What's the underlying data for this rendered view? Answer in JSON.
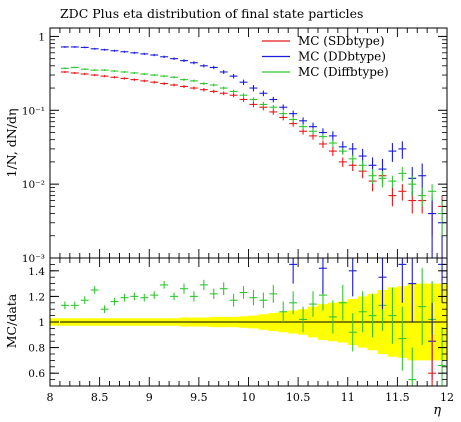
{
  "chart_data": [
    {
      "type": "scatter",
      "title": "ZDC Plus eta distribution of final state particles",
      "ylabel": "1/N, dN/dη",
      "yscale": "log",
      "ylim": [
        0.001,
        1.3
      ],
      "xlim": [
        8,
        12
      ],
      "legend_position": "top-right",
      "y_ticks": [
        {
          "value": 1,
          "label": "1"
        },
        {
          "value": 0.1,
          "label": "10⁻¹"
        },
        {
          "value": 0.01,
          "label": "10⁻²"
        },
        {
          "value": 0.001,
          "label": "10⁻³"
        }
      ],
      "bin_width": 0.1,
      "x": [
        8.15,
        8.25,
        8.35,
        8.45,
        8.55,
        8.65,
        8.75,
        8.85,
        8.95,
        9.05,
        9.15,
        9.25,
        9.35,
        9.45,
        9.55,
        9.65,
        9.75,
        9.85,
        9.95,
        10.05,
        10.15,
        10.25,
        10.35,
        10.45,
        10.55,
        10.65,
        10.75,
        10.85,
        10.95,
        11.05,
        11.15,
        11.25,
        11.35,
        11.45,
        11.55,
        11.65,
        11.75,
        11.85,
        11.95
      ],
      "series": [
        {
          "name": "MC (SDbtype)",
          "color": "#e8191c",
          "values": [
            0.33,
            0.32,
            0.31,
            0.3,
            0.29,
            0.28,
            0.27,
            0.26,
            0.25,
            0.24,
            0.23,
            0.22,
            0.21,
            0.2,
            0.19,
            0.18,
            0.17,
            0.16,
            0.14,
            0.12,
            0.11,
            0.095,
            0.08,
            0.066,
            0.052,
            0.045,
            0.035,
            0.028,
            0.02,
            0.018,
            0.015,
            0.011,
            0.013,
            0.007,
            0.008,
            0.006,
            0.006,
            0.004,
            0.005
          ],
          "errors": [
            0.01,
            0.01,
            0.01,
            0.01,
            0.01,
            0.01,
            0.01,
            0.01,
            0.01,
            0.01,
            0.01,
            0.01,
            0.01,
            0.01,
            0.01,
            0.01,
            0.01,
            0.01,
            0.01,
            0.01,
            0.01,
            0.008,
            0.007,
            0.006,
            0.005,
            0.005,
            0.004,
            0.004,
            0.003,
            0.003,
            0.003,
            0.003,
            0.003,
            0.002,
            0.002,
            0.002,
            0.002,
            0.002,
            0.002
          ]
        },
        {
          "name": "MC (DDbtype)",
          "color": "#1a1adb",
          "values": [
            0.72,
            0.72,
            0.71,
            0.68,
            0.66,
            0.64,
            0.62,
            0.6,
            0.58,
            0.56,
            0.53,
            0.5,
            0.47,
            0.44,
            0.4,
            0.38,
            0.33,
            0.29,
            0.24,
            0.2,
            0.17,
            0.14,
            0.11,
            0.09,
            0.072,
            0.06,
            0.05,
            0.045,
            0.032,
            0.03,
            0.024,
            0.018,
            0.016,
            0.028,
            0.03,
            0.012,
            0.013,
            0.004,
            0.003
          ],
          "errors": [
            0.02,
            0.02,
            0.02,
            0.02,
            0.02,
            0.02,
            0.02,
            0.02,
            0.02,
            0.02,
            0.02,
            0.02,
            0.02,
            0.02,
            0.02,
            0.02,
            0.02,
            0.02,
            0.02,
            0.02,
            0.015,
            0.012,
            0.01,
            0.009,
            0.008,
            0.008,
            0.007,
            0.007,
            0.006,
            0.006,
            0.006,
            0.005,
            0.006,
            0.008,
            0.008,
            0.005,
            0.006,
            0.003,
            0.003
          ]
        },
        {
          "name": "MC (Diffbtype)",
          "color": "#31c731",
          "values": [
            0.37,
            0.38,
            0.36,
            0.35,
            0.35,
            0.34,
            0.33,
            0.32,
            0.31,
            0.3,
            0.29,
            0.28,
            0.26,
            0.25,
            0.23,
            0.22,
            0.2,
            0.18,
            0.16,
            0.14,
            0.12,
            0.11,
            0.09,
            0.075,
            0.06,
            0.052,
            0.044,
            0.036,
            0.028,
            0.022,
            0.018,
            0.013,
            0.012,
            0.011,
            0.014,
            0.01,
            0.007,
            0.008,
            0.004
          ],
          "errors": [
            0.01,
            0.01,
            0.01,
            0.01,
            0.01,
            0.01,
            0.01,
            0.01,
            0.01,
            0.01,
            0.01,
            0.01,
            0.01,
            0.01,
            0.01,
            0.01,
            0.01,
            0.01,
            0.01,
            0.01,
            0.01,
            0.008,
            0.007,
            0.006,
            0.005,
            0.005,
            0.004,
            0.004,
            0.003,
            0.003,
            0.003,
            0.003,
            0.003,
            0.002,
            0.003,
            0.003,
            0.002,
            0.002,
            0.002
          ]
        }
      ]
    },
    {
      "type": "scatter",
      "ylabel": "MC/data",
      "xlabel": "η",
      "ylim": [
        0.5,
        1.5
      ],
      "xlim": [
        8,
        12
      ],
      "x_ticks": [
        {
          "value": 8,
          "label": "8"
        },
        {
          "value": 8.5,
          "label": "8.5"
        },
        {
          "value": 9,
          "label": "9"
        },
        {
          "value": 9.5,
          "label": "9.5"
        },
        {
          "value": 10,
          "label": "10"
        },
        {
          "value": 10.5,
          "label": "10.5"
        },
        {
          "value": 11,
          "label": "11"
        },
        {
          "value": 11.5,
          "label": "11.5"
        },
        {
          "value": 12,
          "label": "12"
        }
      ],
      "y_ticks": [
        {
          "value": 0.6,
          "label": "0.6"
        },
        {
          "value": 0.8,
          "label": "0.8"
        },
        {
          "value": 1,
          "label": "1"
        },
        {
          "value": 1.2,
          "label": "1.2"
        },
        {
          "value": 1.4,
          "label": "1.4"
        }
      ],
      "data_band": {
        "color": "#ffff00",
        "x": [
          8.1,
          8.2,
          8.3,
          8.4,
          8.5,
          8.6,
          8.7,
          8.8,
          8.9,
          9.0,
          9.1,
          9.2,
          9.3,
          9.4,
          9.5,
          9.6,
          9.7,
          9.8,
          9.9,
          10.0,
          10.1,
          10.2,
          10.3,
          10.4,
          10.5,
          10.6,
          10.7,
          10.8,
          10.9,
          11.0,
          11.1,
          11.2,
          11.3,
          11.4,
          11.5,
          11.6,
          11.7,
          11.8,
          11.9,
          12.0
        ],
        "halfwidth": [
          0.03,
          0.03,
          0.03,
          0.03,
          0.03,
          0.03,
          0.03,
          0.03,
          0.03,
          0.03,
          0.03,
          0.03,
          0.03,
          0.035,
          0.035,
          0.035,
          0.04,
          0.04,
          0.04,
          0.045,
          0.05,
          0.06,
          0.07,
          0.08,
          0.09,
          0.1,
          0.12,
          0.14,
          0.15,
          0.16,
          0.18,
          0.2,
          0.22,
          0.25,
          0.27,
          0.28,
          0.3,
          0.3,
          0.3,
          0.3
        ]
      },
      "ratio_series": [
        {
          "name": "MC (Diffbtype)",
          "color": "#31c731",
          "x": [
            8.15,
            8.25,
            8.35,
            8.45,
            8.55,
            8.65,
            8.75,
            8.85,
            8.95,
            9.05,
            9.15,
            9.25,
            9.35,
            9.45,
            9.55,
            9.65,
            9.75,
            9.85,
            9.95,
            10.05,
            10.15,
            10.25,
            10.35,
            10.45,
            10.55,
            10.65,
            10.75,
            10.85,
            10.95,
            11.05,
            11.15,
            11.25,
            11.35,
            11.45,
            11.55,
            11.65,
            11.75,
            11.85,
            11.95
          ],
          "values": [
            1.13,
            1.13,
            1.17,
            1.25,
            1.1,
            1.16,
            1.19,
            1.2,
            1.19,
            1.21,
            1.29,
            1.2,
            1.26,
            1.2,
            1.29,
            1.22,
            1.26,
            1.17,
            1.23,
            1.19,
            1.17,
            1.22,
            1.08,
            1.15,
            1.02,
            1.14,
            1.21,
            1.04,
            1.15,
            0.92,
            1.08,
            1.05,
            1.13,
            1.05,
            0.87,
            0.55,
            1.12,
            1.02,
            0.66
          ],
          "errors": [
            0.03,
            0.03,
            0.03,
            0.03,
            0.03,
            0.03,
            0.03,
            0.03,
            0.03,
            0.03,
            0.03,
            0.03,
            0.04,
            0.04,
            0.04,
            0.04,
            0.05,
            0.05,
            0.05,
            0.06,
            0.06,
            0.07,
            0.08,
            0.09,
            0.1,
            0.1,
            0.12,
            0.13,
            0.14,
            0.15,
            0.16,
            0.17,
            0.2,
            0.22,
            0.25,
            0.25,
            0.3,
            0.3,
            0.3
          ]
        },
        {
          "name": "MC (DDbtype)",
          "color": "#1a1adb",
          "x": [
            10.45,
            10.75,
            11.05,
            11.35,
            11.55,
            11.65,
            11.85,
            11.95
          ],
          "values": [
            1.45,
            1.42,
            1.4,
            1.35,
            1.45,
            1.3,
            0.85,
            1.45
          ],
          "errors": [
            0.15,
            0.2,
            0.2,
            0.25,
            0.3,
            0.3,
            0.3,
            0.3
          ]
        },
        {
          "name": "MC (SDbtype)",
          "color": "#e8191c",
          "x": [
            11.85
          ],
          "values": [
            0.6
          ],
          "errors": [
            0.3
          ]
        }
      ]
    }
  ]
}
